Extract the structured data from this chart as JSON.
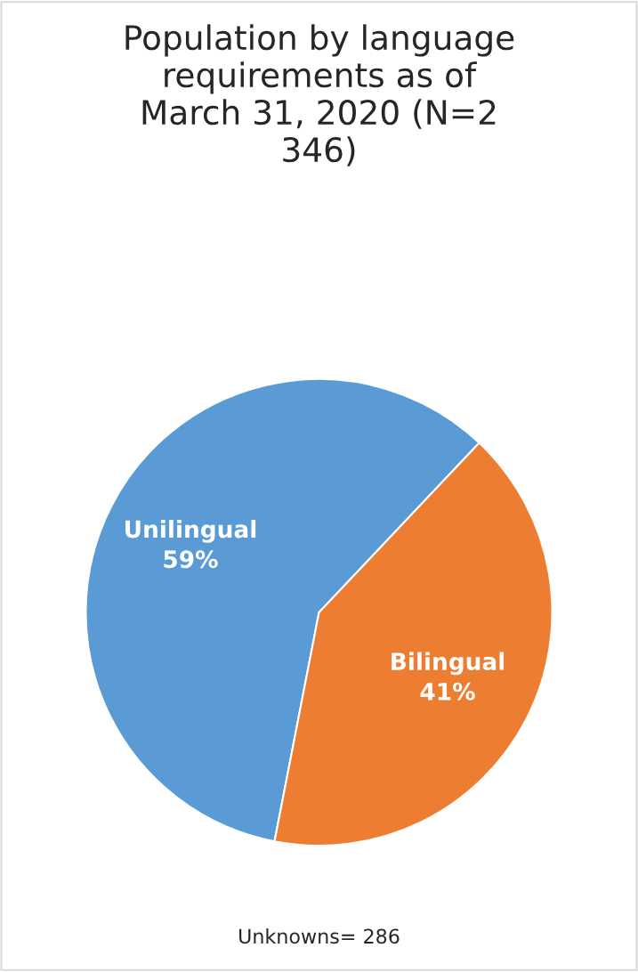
{
  "chart_data": {
    "type": "pie",
    "title": "Population by language requirements as of March 31, 2020 (N=2 346)",
    "categories": [
      "Unilingual",
      "Bilingual"
    ],
    "values": [
      59,
      41
    ],
    "colors": [
      "#5b9bd5",
      "#ed7d31"
    ],
    "value_labels": [
      "59%",
      "41%"
    ],
    "annotations": [
      "Unknowns= 286"
    ]
  }
}
